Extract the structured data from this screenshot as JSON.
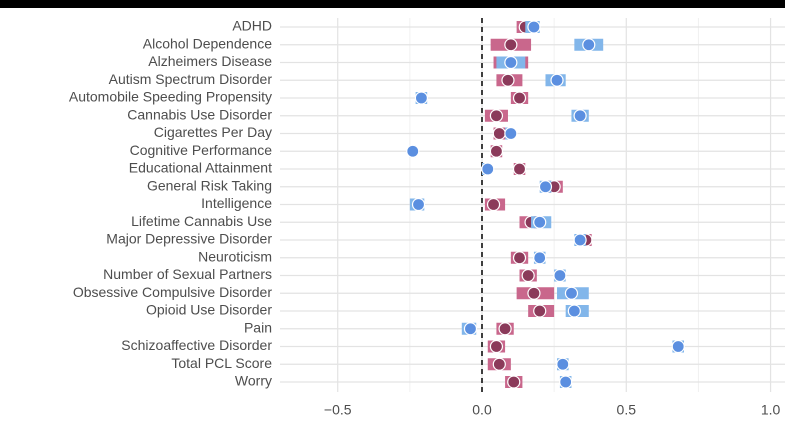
{
  "chart_data": {
    "type": "dot_interval",
    "categories": [
      "ADHD",
      "Alcohol Dependence",
      "Alzheimers Disease",
      "Autism Spectrum Disorder",
      "Automobile Speeding Propensity",
      "Cannabis Use Disorder",
      "Cigarettes Per Day",
      "Cognitive Performance",
      "Educational Attainment",
      "General Risk Taking",
      "Intelligence",
      "Lifetime Cannabis Use",
      "Major Depressive Disorder",
      "Neuroticism",
      "Number of Sexual Partners",
      "Obsessive Compulsive Disorder",
      "Opioid Use Disorder",
      "Pain",
      "Schizoaffective Disorder",
      "Total PCL Score",
      "Worry"
    ],
    "series": [
      {
        "color": "#8b3a5a",
        "interval_color": "#c9678c",
        "values": [
          0.15,
          0.1,
          0.1,
          0.09,
          0.13,
          0.05,
          0.06,
          0.05,
          0.13,
          0.25,
          0.04,
          0.17,
          0.36,
          0.13,
          0.16,
          0.18,
          0.2,
          0.08,
          0.05,
          0.06,
          0.11
        ],
        "lower": [
          0.12,
          0.03,
          0.04,
          0.05,
          0.1,
          0.01,
          0.04,
          0.03,
          0.11,
          0.22,
          0.01,
          0.13,
          0.33,
          0.1,
          0.13,
          0.12,
          0.16,
          0.05,
          0.02,
          0.02,
          0.08
        ],
        "upper": [
          0.19,
          0.17,
          0.16,
          0.14,
          0.16,
          0.09,
          0.09,
          0.07,
          0.15,
          0.28,
          0.08,
          0.2,
          0.38,
          0.16,
          0.19,
          0.25,
          0.25,
          0.11,
          0.08,
          0.1,
          0.14
        ]
      },
      {
        "color": "#5b8fe0",
        "interval_color": "#82b6ea",
        "values": [
          0.18,
          0.37,
          0.1,
          0.26,
          -0.21,
          0.34,
          0.1,
          -0.24,
          0.02,
          0.22,
          -0.22,
          0.2,
          0.34,
          0.2,
          0.27,
          0.31,
          0.32,
          -0.04,
          0.68,
          0.28,
          0.29
        ],
        "lower": [
          0.15,
          0.32,
          0.05,
          0.22,
          -0.23,
          0.31,
          0.08,
          -0.25,
          0.0,
          0.2,
          -0.25,
          0.17,
          0.32,
          0.18,
          0.25,
          0.26,
          0.29,
          -0.07,
          0.66,
          0.26,
          0.27
        ],
        "upper": [
          0.2,
          0.42,
          0.15,
          0.29,
          -0.19,
          0.37,
          0.11,
          -0.23,
          0.03,
          0.24,
          -0.2,
          0.24,
          0.36,
          0.22,
          0.29,
          0.37,
          0.37,
          -0.02,
          0.7,
          0.3,
          0.31
        ]
      }
    ],
    "xlim": [
      -0.7,
      1.05
    ],
    "xticks": [
      {
        "value": -0.5,
        "label": "−0.5"
      },
      {
        "value": 0,
        "label": "0.0"
      },
      {
        "value": 0.5,
        "label": "0.5"
      },
      {
        "value": 1,
        "label": "1.0"
      }
    ],
    "minor_xticks": [
      -0.25,
      0.25,
      0.75
    ],
    "reference_line": 0,
    "grid": true
  }
}
